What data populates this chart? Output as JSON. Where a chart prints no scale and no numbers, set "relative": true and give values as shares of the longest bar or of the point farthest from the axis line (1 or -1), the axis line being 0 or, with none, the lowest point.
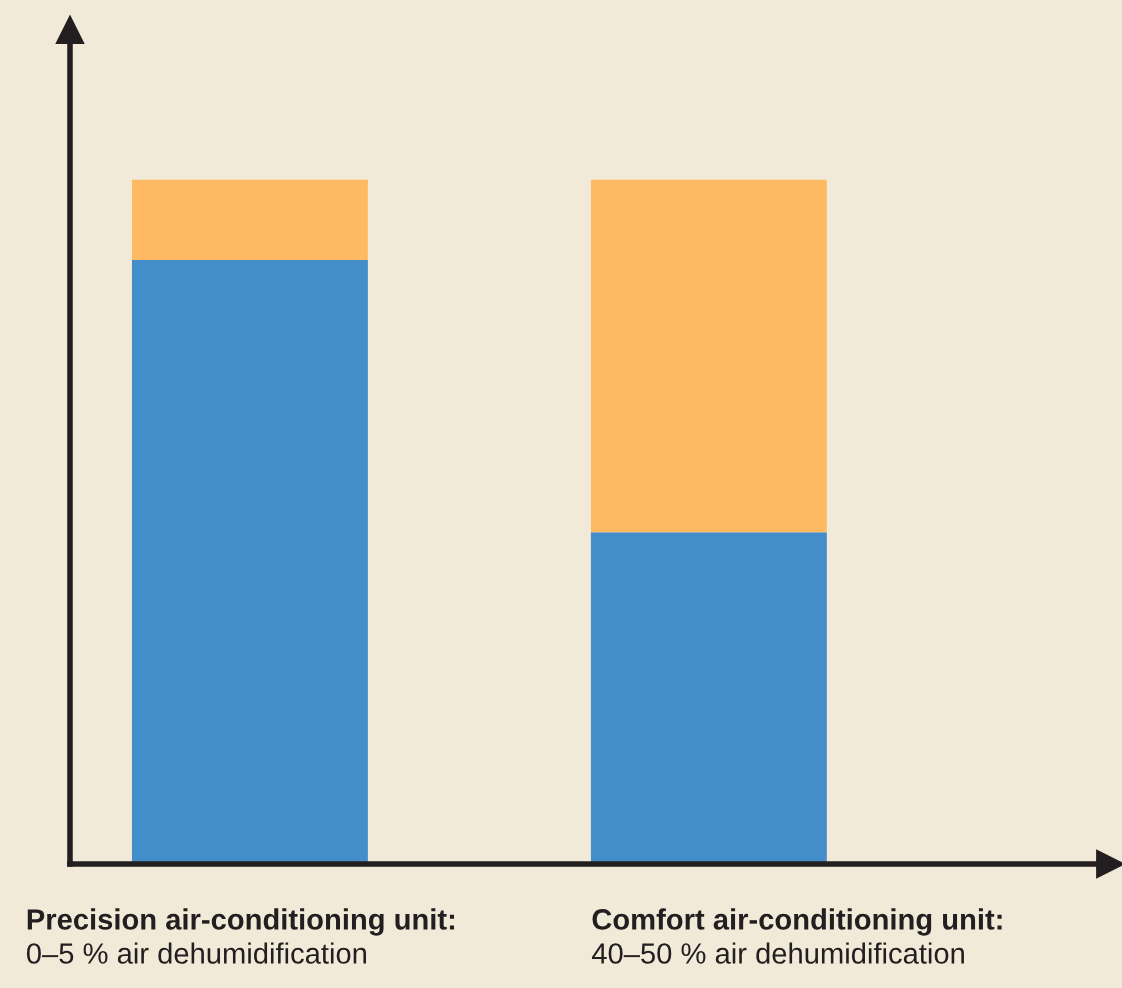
{
  "chart_data": {
    "type": "bar",
    "stacked": true,
    "relative": true,
    "categories": [
      "Precision air-conditioning unit:\n0–5 % air dehumidification",
      "Comfort air-conditioning unit:\n40–50 % air dehumidification"
    ],
    "series": [
      {
        "color": "#438dcb",
        "values": [
          0.883,
          0.485
        ]
      },
      {
        "color": "#fdba63",
        "values": [
          0.117,
          0.515
        ]
      }
    ]
  }
}
